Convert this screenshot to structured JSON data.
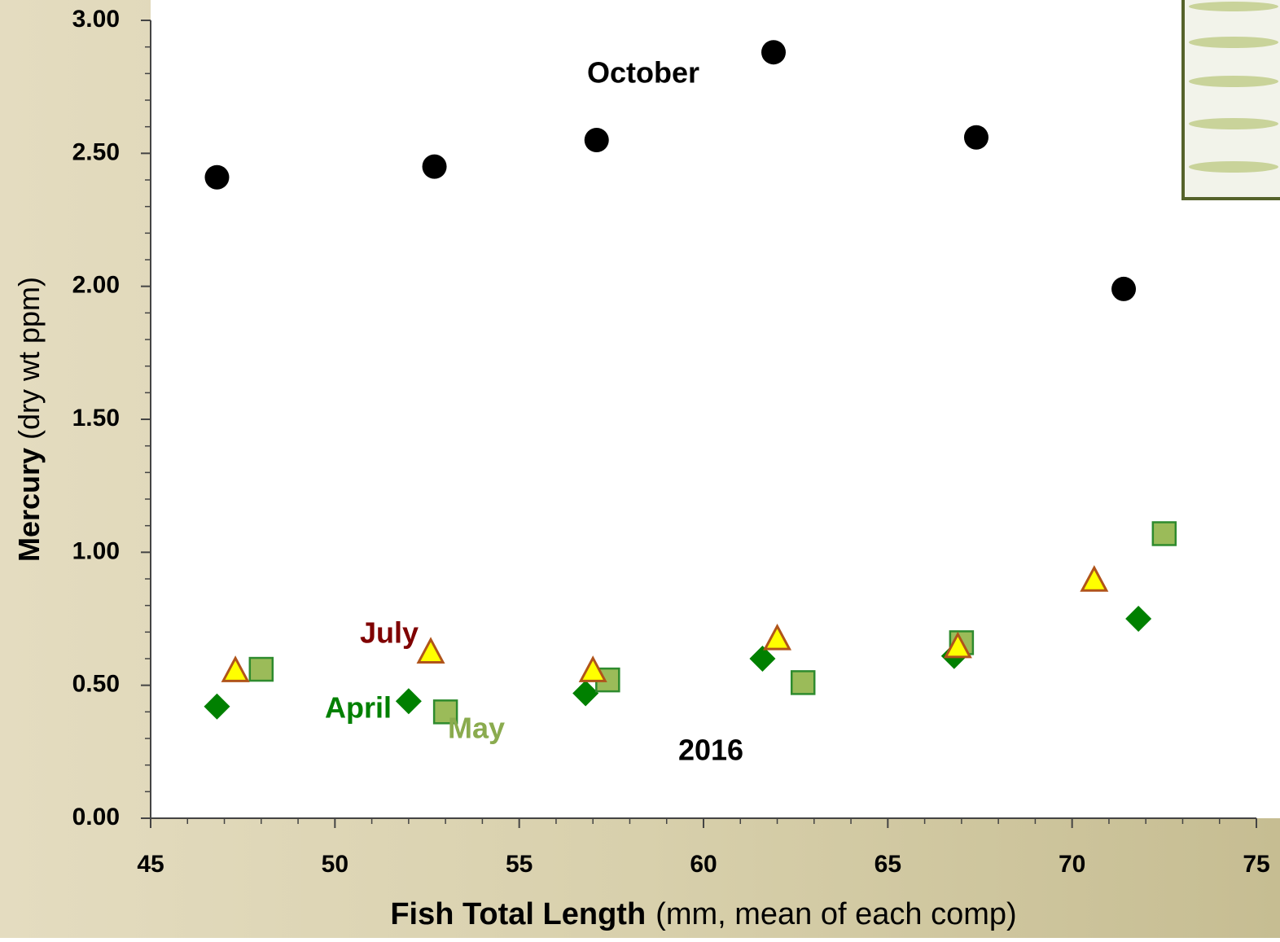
{
  "chart_data": {
    "type": "scatter",
    "ylabel": [
      "Mercury",
      "(dry wt ppm)"
    ],
    "xlabel": [
      "Fish Total Length",
      "(mm, mean of each comp)"
    ],
    "annotations": [
      "2016"
    ],
    "xlim": [
      45,
      75
    ],
    "xticks": [
      45,
      50,
      55,
      60,
      65,
      70,
      75
    ],
    "xminorticks": [
      46,
      47,
      48,
      49,
      51,
      52,
      53,
      54,
      56,
      57,
      58,
      59,
      61,
      62,
      63,
      64,
      66,
      67,
      68,
      69,
      71,
      72,
      73,
      74
    ],
    "ylim": [
      0,
      3
    ],
    "yticks": [
      {
        "value": 0,
        "label": "0.00"
      },
      {
        "value": 0.5,
        "label": "0.50"
      },
      {
        "value": 1,
        "label": "1.00"
      },
      {
        "value": 1.5,
        "label": "1.50"
      },
      {
        "value": 2,
        "label": "2.00"
      },
      {
        "value": 2.5,
        "label": "2.50"
      },
      {
        "value": 3,
        "label": "3.00"
      }
    ],
    "yminorticks": [
      0.1,
      0.2,
      0.3,
      0.4,
      0.6,
      0.7,
      0.8,
      0.9,
      1.1,
      1.2,
      1.3,
      1.4,
      1.6,
      1.7,
      1.8,
      1.9,
      2.1,
      2.2,
      2.3,
      2.4,
      2.6,
      2.7,
      2.8,
      2.9
    ],
    "series": [
      {
        "name": "October",
        "color": "#000000",
        "marker": "circle",
        "x": [
          46.8,
          52.7,
          57.1,
          61.9,
          67.4,
          71.4
        ],
        "values": [
          2.41,
          2.45,
          2.55,
          2.88,
          2.56,
          1.99
        ]
      },
      {
        "name": "April",
        "color": "#008000",
        "marker": "diamond",
        "x": [
          46.8,
          52.0,
          56.8,
          61.6,
          66.8,
          71.8
        ],
        "values": [
          0.42,
          0.44,
          0.47,
          0.6,
          0.61,
          0.75
        ]
      },
      {
        "name": "May",
        "color": "#8aab4e",
        "marker": "square",
        "x": [
          48.0,
          53.0,
          57.4,
          62.7,
          67.0,
          72.5
        ],
        "values": [
          0.56,
          0.4,
          0.52,
          0.51,
          0.66,
          1.07
        ]
      },
      {
        "name": "July",
        "color": "#7f0000",
        "marker": "triangle",
        "x": [
          47.3,
          52.6,
          57.0,
          62.0,
          66.9,
          70.6
        ],
        "values": [
          0.55,
          0.62,
          0.55,
          0.67,
          0.64,
          0.89
        ]
      }
    ]
  }
}
